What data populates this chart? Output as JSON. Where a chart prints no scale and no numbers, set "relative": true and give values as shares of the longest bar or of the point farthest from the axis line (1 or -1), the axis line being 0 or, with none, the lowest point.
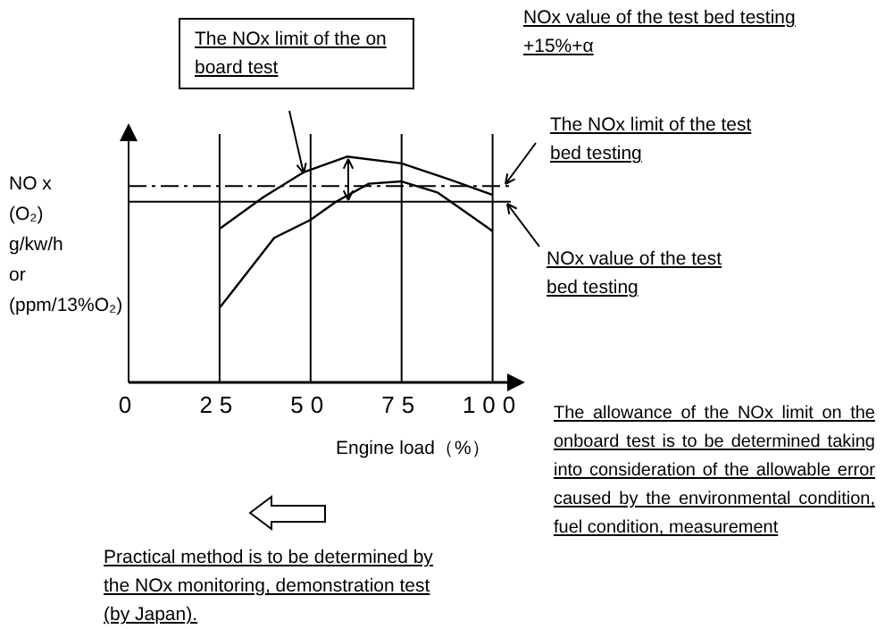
{
  "chart_data": {
    "type": "line",
    "relative": true,
    "xlabel": "Engine load（%）",
    "ylabel": "NO x\n(O₂)\ng/kw/h\nor\n(ppm/13%O₂)",
    "xlim": [
      0,
      105
    ],
    "xticks": [
      0,
      25,
      50,
      75,
      100
    ],
    "grid": "x",
    "marker": "none",
    "line_style": "solid",
    "series": [
      {
        "color": "#000000",
        "x": [
          25,
          37,
          48,
          60,
          75,
          88,
          100
        ],
        "values": [
          0.68,
          0.82,
          0.93,
          1,
          0.97,
          0.9,
          0.83
        ]
      },
      {
        "color": "#000000",
        "x": [
          25,
          40,
          50,
          57,
          66,
          75,
          85,
          100
        ],
        "values": [
          0.33,
          0.64,
          0.72,
          0.8,
          0.88,
          0.89,
          0.84,
          0.67
        ]
      }
    ],
    "ref_lines": [
      {
        "axis": "y",
        "value": 0.87,
        "label": "The NOx limit of the test bed testing",
        "color": "#000000",
        "line_style": "dashed"
      },
      {
        "axis": "y",
        "value": 0.8,
        "label": "NOx value of the test bed testing",
        "color": "#000000",
        "line_style": "solid"
      }
    ],
    "annotations": [
      "The NOx limit of the on board test",
      "NOx value of the test bed testing +15%+α",
      "The allowance of the NOx limit on the onboard test is to be determined taking into consideration of the allowable error caused by the environmental condition, fuel condition, measurement",
      "Practical method is to be determined by the NOx monitoring, demonstration test (by Japan)."
    ]
  }
}
